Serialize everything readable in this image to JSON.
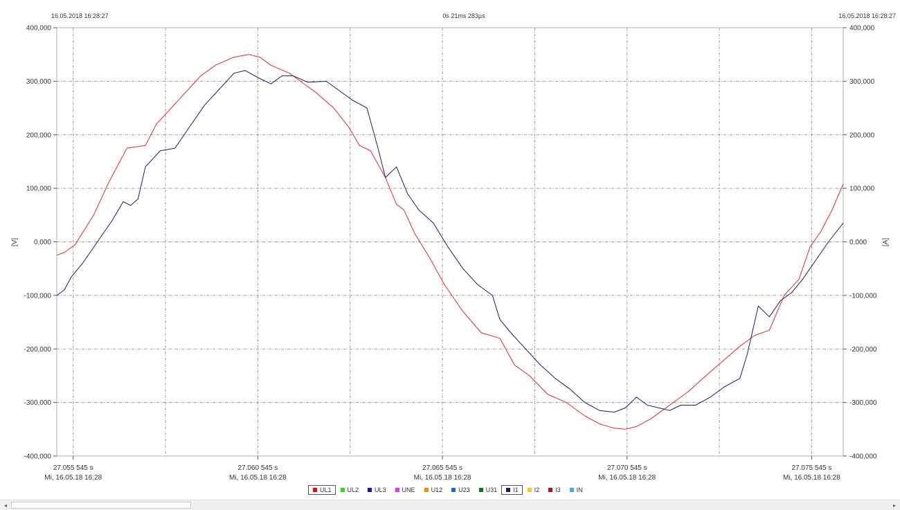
{
  "header": {
    "left_timestamp": "16.05.2018 16:28:27",
    "center_duration": "0s 21ms 283µs",
    "right_timestamp": "16.05.2018 16:28:27"
  },
  "chart_data": {
    "type": "line",
    "ylabel_left": "[V]",
    "ylabel_right": "[A]",
    "ylim": [
      -400,
      400
    ],
    "yticks": [
      400,
      300,
      200,
      100,
      0,
      -100,
      -200,
      -300,
      -400
    ],
    "ytick_labels": [
      "400,000",
      "300,000",
      "200,000",
      "100,000",
      "0,000",
      "-100,000",
      "-200,000",
      "-300,000",
      "-400,000"
    ],
    "xlim": [
      27.0551,
      27.0764
    ],
    "xticks": [
      {
        "value": 27.055545,
        "time": "27.055 545 s",
        "date": "Mi, 16.05.18 16:28"
      },
      {
        "value": 27.060545,
        "time": "27.060 545 s",
        "date": "Mi, 16.05.18 16:28"
      },
      {
        "value": 27.065545,
        "time": "27.065 545 s",
        "date": "Mi, 16.05.18 16:28"
      },
      {
        "value": 27.070545,
        "time": "27.070 545 s",
        "date": "Mi, 16.05.18 16:28"
      },
      {
        "value": 27.075545,
        "time": "27.075 545 s",
        "date": "Mi, 16.05.18 16:28"
      }
    ],
    "grid": true,
    "series": [
      {
        "name": "UL1",
        "color": "#ff2020",
        "x": [
          27.0551,
          27.0553,
          27.0556,
          27.0561,
          27.0565,
          27.057,
          27.0575,
          27.0578,
          27.0582,
          27.0586,
          27.059,
          27.0594,
          27.0599,
          27.0603,
          27.0606,
          27.0609,
          27.0614,
          27.0617,
          27.0621,
          27.0626,
          27.063,
          27.0633,
          27.0636,
          27.064,
          27.0643,
          27.0645,
          27.0648,
          27.0652,
          27.0656,
          27.0661,
          27.0666,
          27.0671,
          27.0675,
          27.0679,
          27.0684,
          27.0689,
          27.0694,
          27.0698,
          27.0702,
          27.0705,
          27.0708,
          27.0712,
          27.0715,
          27.0718,
          27.0722,
          27.0726,
          27.0731,
          27.0736,
          27.074,
          27.0744,
          27.0748,
          27.0752,
          27.0755,
          27.0758,
          27.0761,
          27.0764
        ],
        "y": [
          -25,
          -20,
          -5,
          50,
          110,
          175,
          180,
          220,
          250,
          280,
          310,
          330,
          345,
          350,
          345,
          330,
          315,
          300,
          280,
          250,
          215,
          180,
          170,
          120,
          70,
          60,
          15,
          -30,
          -80,
          -130,
          -170,
          -180,
          -230,
          -250,
          -285,
          -300,
          -325,
          -340,
          -348,
          -350,
          -345,
          -330,
          -315,
          -300,
          -280,
          -255,
          -225,
          -195,
          -175,
          -165,
          -100,
          -70,
          -10,
          20,
          60,
          108
        ]
      },
      {
        "name": "I1",
        "color": "#1a1a6e",
        "x": [
          27.0551,
          27.0553,
          27.0555,
          27.0558,
          27.0562,
          27.0566,
          27.0569,
          27.0571,
          27.0573,
          27.0575,
          27.0579,
          27.0583,
          27.0587,
          27.0591,
          27.0595,
          27.0599,
          27.0602,
          27.0606,
          27.0609,
          27.0612,
          27.0615,
          27.0619,
          27.0624,
          27.0627,
          27.0631,
          27.0635,
          27.0638,
          27.064,
          27.0643,
          27.0646,
          27.0649,
          27.0653,
          27.0657,
          27.0661,
          27.0665,
          27.0669,
          27.0671,
          27.0674,
          27.0678,
          27.0682,
          27.0686,
          27.069,
          27.0694,
          27.0698,
          27.0702,
          27.0705,
          27.0708,
          27.0711,
          27.0714,
          27.0717,
          27.072,
          27.0724,
          27.0728,
          27.0732,
          27.0736,
          27.0738,
          27.0741,
          27.0744,
          27.0747,
          27.075,
          27.0753,
          27.0756,
          27.076,
          27.0764
        ],
        "y": [
          -100,
          -90,
          -65,
          -40,
          0,
          40,
          75,
          68,
          80,
          140,
          170,
          175,
          215,
          255,
          285,
          315,
          320,
          305,
          295,
          310,
          310,
          298,
          300,
          285,
          265,
          250,
          175,
          120,
          140,
          90,
          60,
          35,
          -10,
          -50,
          -80,
          -100,
          -145,
          -170,
          -200,
          -230,
          -255,
          -275,
          -300,
          -315,
          -318,
          -310,
          -290,
          -305,
          -310,
          -315,
          -305,
          -305,
          -290,
          -270,
          -255,
          -210,
          -120,
          -140,
          -110,
          -95,
          -70,
          -40,
          0,
          35
        ]
      }
    ],
    "legend_items": [
      {
        "name": "UL1",
        "color": "#ff0000",
        "active": true
      },
      {
        "name": "UL2",
        "color": "#22dd22",
        "active": false
      },
      {
        "name": "UL3",
        "color": "#1010cc",
        "active": false
      },
      {
        "name": "UNE",
        "color": "#ff22ff",
        "active": false
      },
      {
        "name": "U12",
        "color": "#ff8800",
        "active": false
      },
      {
        "name": "U23",
        "color": "#1166ee",
        "active": false
      },
      {
        "name": "U31",
        "color": "#117711",
        "active": false
      },
      {
        "name": "I1",
        "color": "#1a1a6e",
        "active": true
      },
      {
        "name": "I2",
        "color": "#ffcc00",
        "active": false
      },
      {
        "name": "I3",
        "color": "#bb1111",
        "active": false
      },
      {
        "name": "IN",
        "color": "#44aaee",
        "active": false
      }
    ],
    "legend_placement": "bottom-center"
  },
  "scrollbar": {
    "left_arrow": "◂",
    "right_arrow": "▸"
  }
}
